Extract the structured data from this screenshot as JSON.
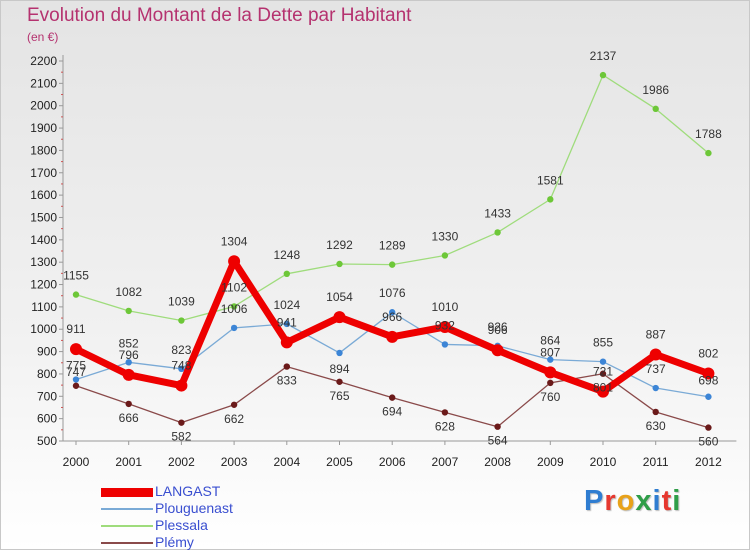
{
  "page": {
    "title": "Evolution du Montant de la Dette par Habitant",
    "subtitle": "(en €)"
  },
  "logo": {
    "text": "Proxiti",
    "letter_colors": [
      "#2f7dd1",
      "#e6382f",
      "#e8a21a",
      "#2f9e48",
      "#2f7dd1",
      "#e6382f",
      "#2f9e48"
    ]
  },
  "chart_data": {
    "type": "line",
    "title": "Evolution du Montant de la Dette par Habitant",
    "subtitle": "(en €)",
    "xlabel": "",
    "ylabel": "",
    "x": [
      "2000",
      "2001",
      "2002",
      "2003",
      "2004",
      "2005",
      "2006",
      "2007",
      "2008",
      "2009",
      "2010",
      "2011",
      "2012"
    ],
    "ylim": [
      500,
      2200
    ],
    "yticks": [
      500,
      600,
      700,
      800,
      900,
      1000,
      1100,
      1200,
      1300,
      1400,
      1500,
      1600,
      1700,
      1800,
      1900,
      2000,
      2100,
      2200
    ],
    "grid": false,
    "legend_position": "bottom-left",
    "series": [
      {
        "name": "LANGAST",
        "color": "#ee0000",
        "values": [
          911,
          796,
          748,
          1304,
          941,
          1054,
          966,
          1010,
          906,
          807,
          721,
          887,
          802
        ]
      },
      {
        "name": "Plouguenast",
        "color": "#4d8fd0",
        "values": [
          775,
          852,
          823,
          1006,
          1024,
          894,
          1076,
          932,
          926,
          864,
          855,
          737,
          698
        ]
      },
      {
        "name": "Plessala",
        "color": "#7bcc45",
        "values": [
          1155,
          1082,
          1039,
          1102,
          1248,
          1292,
          1289,
          1330,
          1433,
          1581,
          2137,
          1986,
          1788
        ]
      },
      {
        "name": "Plémy",
        "color": "#6b2020",
        "values": [
          747,
          666,
          582,
          662,
          833,
          765,
          694,
          628,
          564,
          760,
          801,
          630,
          560
        ]
      }
    ]
  }
}
